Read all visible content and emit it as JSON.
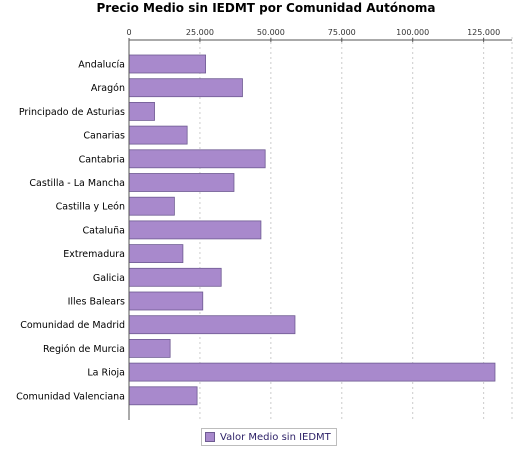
{
  "chart_data": {
    "type": "bar",
    "orientation": "horizontal",
    "title": "Precio Medio sin IEDMT por Comunidad Autónoma",
    "categories": [
      "Andalucía",
      "Aragón",
      "Principado de Asturias",
      "Canarias",
      "Cantabria",
      "Castilla - La Mancha",
      "Castilla y León",
      "Cataluña",
      "Extremadura",
      "Galicia",
      "Illes Balears",
      "Comunidad de Madrid",
      "Región de Murcia",
      "La Rioja",
      "Comunidad Valenciana"
    ],
    "series": [
      {
        "name": "Valor Medio sin IEDMT",
        "values": [
          27000,
          40000,
          9000,
          20500,
          48000,
          37000,
          16000,
          46500,
          19000,
          32500,
          26000,
          58500,
          14500,
          129000,
          24000
        ]
      }
    ],
    "xlim": [
      0,
      135000
    ],
    "xticks": [
      0,
      25000,
      50000,
      75000,
      100000,
      125000
    ],
    "xtick_labels": [
      "0",
      "25.000",
      "50.000",
      "75.000",
      "100.000",
      "125.000"
    ],
    "grid": true,
    "legend_position": "bottom",
    "colors": {
      "bar_fill": "#a889cc",
      "bar_stroke": "#6e5b92",
      "grid": "#cccccc"
    }
  }
}
